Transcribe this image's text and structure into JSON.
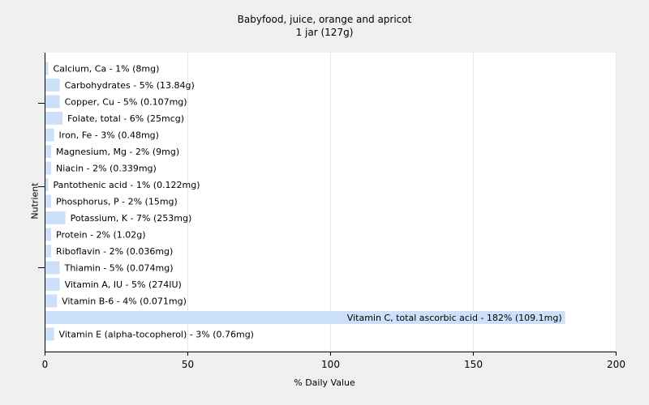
{
  "chart_data": {
    "type": "bar",
    "orientation": "horizontal",
    "title": "Babyfood, juice, orange and apricot",
    "subtitle": "1 jar (127g)",
    "xlabel": "% Daily Value",
    "ylabel": "Nutrient",
    "xlim": [
      0,
      200
    ],
    "xticks": [
      0,
      50,
      100,
      150,
      200
    ],
    "grid": true,
    "bar_color": "#cce0fa",
    "categories": [
      "Calcium, Ca - 1% (8mg)",
      "Carbohydrates - 5% (13.84g)",
      "Copper, Cu - 5% (0.107mg)",
      "Folate, total - 6% (25mcg)",
      "Iron, Fe - 3% (0.48mg)",
      "Magnesium, Mg - 2% (9mg)",
      "Niacin - 2% (0.339mg)",
      "Pantothenic acid - 1% (0.122mg)",
      "Phosphorus, P - 2% (15mg)",
      "Potassium, K - 7% (253mg)",
      "Protein - 2% (1.02g)",
      "Riboflavin - 2% (0.036mg)",
      "Thiamin - 5% (0.074mg)",
      "Vitamin A, IU - 5% (274IU)",
      "Vitamin B-6 - 4% (0.071mg)",
      "Vitamin C, total ascorbic acid - 182% (109.1mg)",
      "Vitamin E (alpha-tocopherol) - 3% (0.76mg)"
    ],
    "values": [
      1,
      5,
      5,
      6,
      3,
      2,
      2,
      1,
      2,
      7,
      2,
      2,
      5,
      5,
      4,
      182,
      3
    ]
  }
}
